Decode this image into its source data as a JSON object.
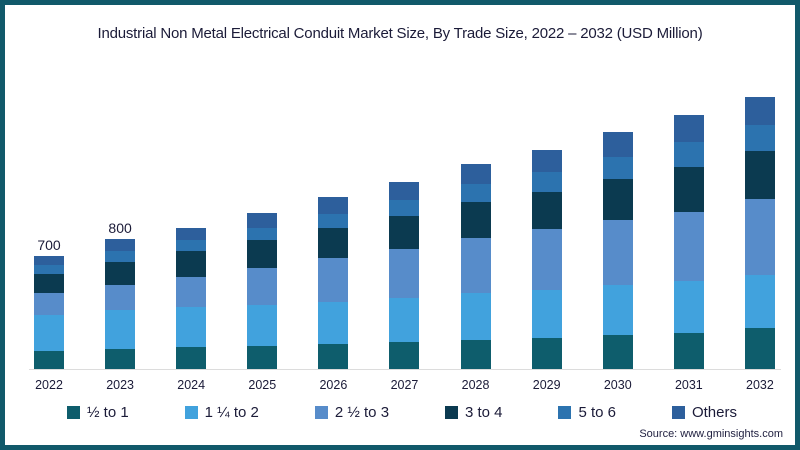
{
  "frame": {
    "border_color": "#11596a",
    "background": "#ffffff"
  },
  "title": "Industrial Non Metal Electrical Conduit Market Size, By Trade Size, 2022 – 2032 (USD Million)",
  "source": "Source: www.gminsights.com",
  "chart_data": {
    "type": "bar",
    "stacked": true,
    "unit": "USD Million",
    "title": "Industrial Non Metal Electrical Conduit Market Size, By Trade Size, 2022 – 2032 (USD Million)",
    "categories": [
      "2022",
      "2023",
      "2024",
      "2025",
      "2026",
      "2027",
      "2028",
      "2029",
      "2030",
      "2031",
      "2032"
    ],
    "series": [
      {
        "name": "½ to 1",
        "color": "#0e5d6c",
        "values": [
          118,
          130,
          140,
          148,
          158,
          170,
          185,
          196,
          212,
          228,
          255
        ]
      },
      {
        "name": "1 ¼ to 2",
        "color": "#41a2dd",
        "values": [
          220,
          235,
          245,
          250,
          260,
          272,
          285,
          296,
          310,
          318,
          325
        ]
      },
      {
        "name": "2 ½ to 3",
        "color": "#578cca",
        "values": [
          130,
          155,
          185,
          225,
          265,
          300,
          340,
          368,
          398,
          420,
          465
        ]
      },
      {
        "name": "3 to 4",
        "color": "#0b3a50",
        "values": [
          120,
          138,
          155,
          170,
          185,
          200,
          215,
          230,
          250,
          272,
          295
        ]
      },
      {
        "name": "5 to 6",
        "color": "#2c73af",
        "values": [
          52,
          68,
          70,
          78,
          88,
          98,
          112,
          122,
          135,
          153,
          160
        ]
      },
      {
        "name": "Others",
        "color": "#2d5f9c",
        "values": [
          60,
          74,
          75,
          89,
          99,
          110,
          123,
          133,
          150,
          169,
          170
        ]
      }
    ],
    "totals": [
      700,
      800,
      870,
      960,
      1055,
      1150,
      1260,
      1345,
      1455,
      1560,
      1670
    ],
    "bar_labels": [
      "700",
      "800",
      "",
      "",
      "",
      "",
      "",
      "",
      "",
      "",
      ""
    ],
    "xlabel": "",
    "ylabel": "",
    "ylim": [
      0,
      1835
    ],
    "grid": false,
    "legend_position": "bottom"
  }
}
